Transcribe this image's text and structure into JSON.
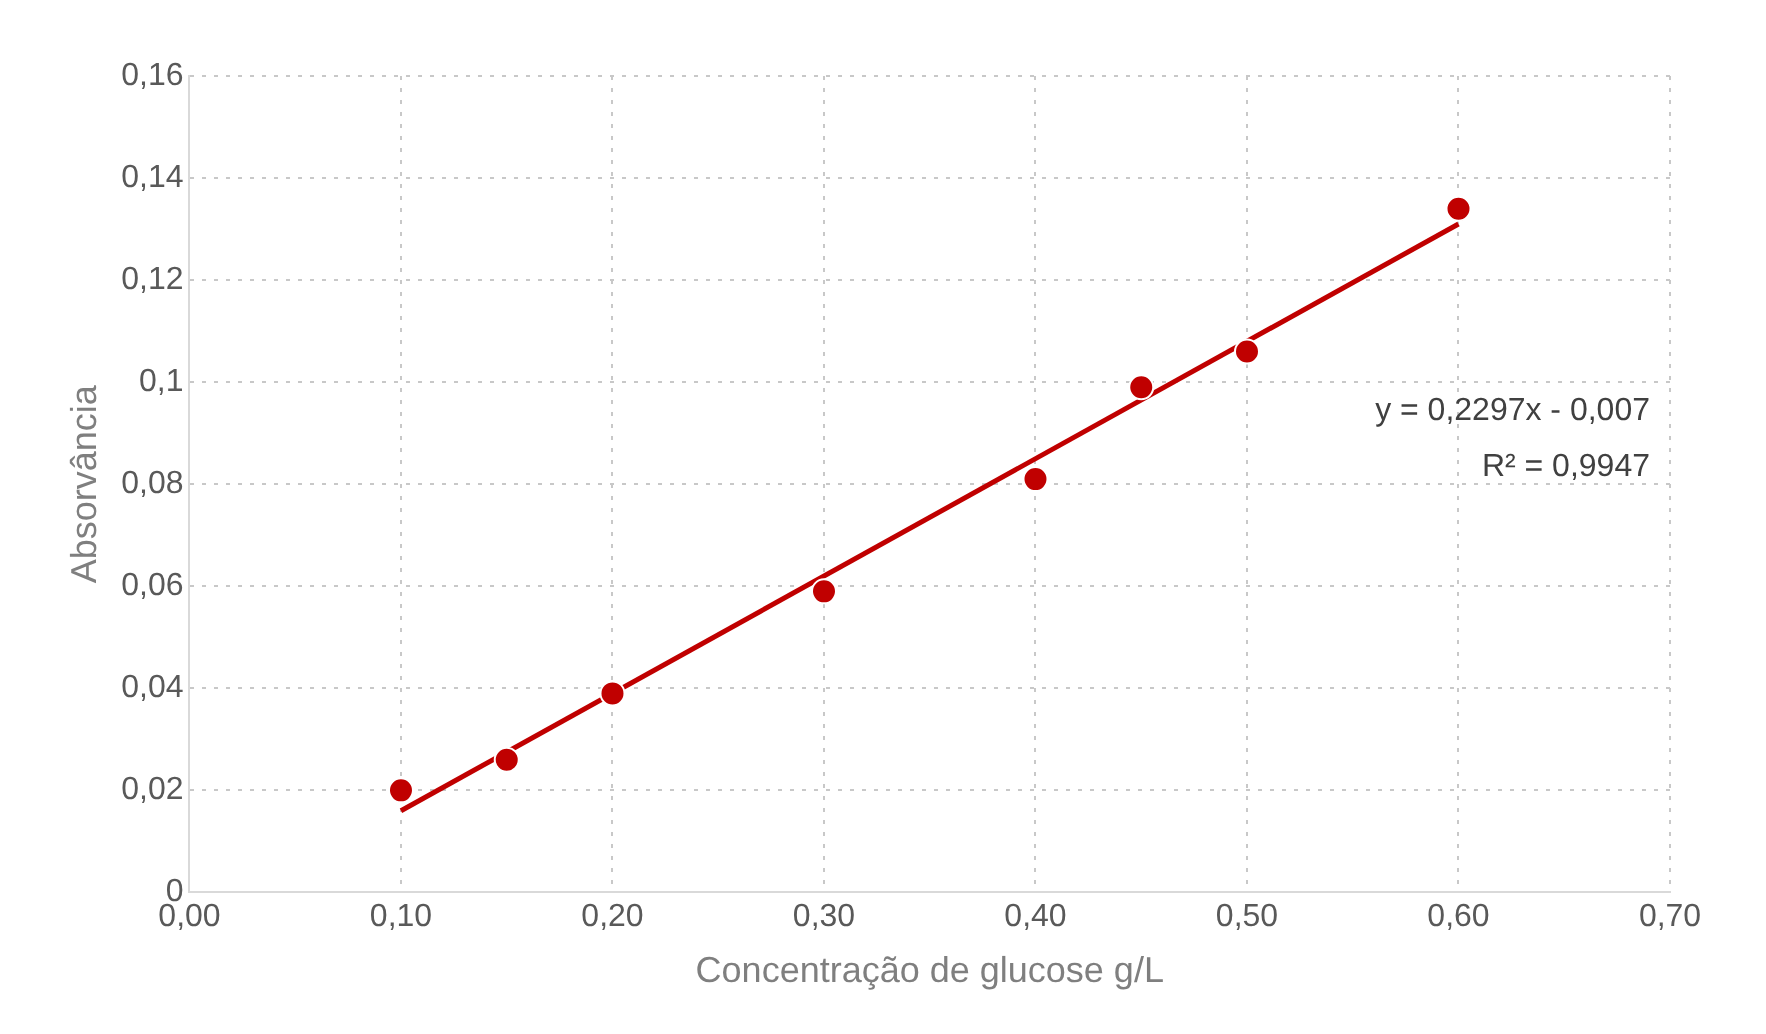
{
  "chart_data": {
    "type": "scatter",
    "xlabel": "Concentração de glucose g/L",
    "ylabel": "Absorvância",
    "xlim": [
      0,
      0.7
    ],
    "xticks": [
      {
        "value": 0,
        "label": "0,00"
      },
      {
        "value": 0.1,
        "label": "0,10"
      },
      {
        "value": 0.2,
        "label": "0,20"
      },
      {
        "value": 0.3,
        "label": "0,30"
      },
      {
        "value": 0.4,
        "label": "0,40"
      },
      {
        "value": 0.5,
        "label": "0,50"
      },
      {
        "value": 0.6,
        "label": "0,60"
      },
      {
        "value": 0.7,
        "label": "0,70"
      }
    ],
    "ylim": [
      0,
      0.16
    ],
    "yticks": [
      0,
      {
        "value": 0.02,
        "label": "0,02"
      },
      {
        "value": 0.04,
        "label": "0,04"
      },
      {
        "value": 0.06,
        "label": "0,06"
      },
      {
        "value": 0.08,
        "label": "0,08"
      },
      {
        "value": 0.1,
        "label": "0,1"
      },
      {
        "value": 0.12,
        "label": "0,12"
      },
      {
        "value": 0.14,
        "label": "0,14"
      },
      {
        "value": 0.16,
        "label": "0,16"
      }
    ],
    "series": [
      {
        "type": "scatter",
        "marker": "circle",
        "color": "#c00000",
        "x": [
          0.1,
          0.15,
          0.2,
          0.3,
          0.4,
          0.45,
          0.5,
          0.6
        ],
        "values": [
          0.02,
          0.026,
          0.039,
          0.059,
          0.081,
          0.099,
          0.106,
          0.134
        ]
      },
      {
        "type": "line",
        "marker": "none",
        "color": "#c00000",
        "x": [
          0.1,
          0.6
        ],
        "values": [
          0.016,
          0.131
        ]
      }
    ],
    "grid": true,
    "legend": false,
    "annotations": [
      "y = 0,2297x - 0,007",
      "R² = 0,9947"
    ]
  }
}
